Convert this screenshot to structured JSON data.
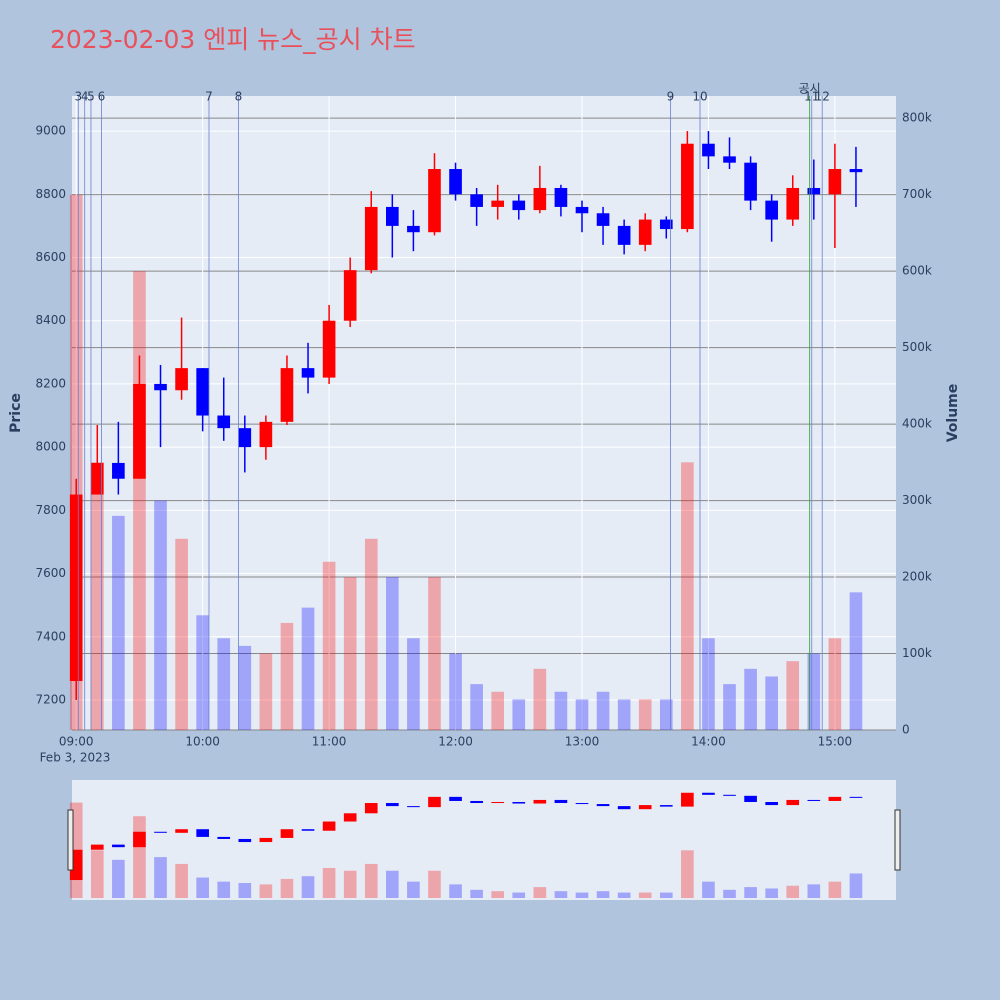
{
  "chart_data": {
    "type": "candlestick",
    "title": "2023-02-03 엔피 뉴스_공시 차트",
    "x_axis_date": "Feb 3, 2023",
    "y_label": "Price",
    "y2_label": "Volume",
    "x": [
      "09:00",
      "09:10",
      "09:20",
      "09:30",
      "09:40",
      "09:50",
      "10:00",
      "10:10",
      "10:20",
      "10:30",
      "10:40",
      "10:50",
      "11:00",
      "11:10",
      "11:20",
      "11:30",
      "11:40",
      "11:50",
      "12:00",
      "12:10",
      "12:20",
      "12:30",
      "12:40",
      "12:50",
      "13:00",
      "13:10",
      "13:20",
      "13:30",
      "13:40",
      "13:50",
      "14:00",
      "14:10",
      "14:20",
      "14:30",
      "14:40",
      "14:50",
      "15:00",
      "15:10"
    ],
    "open": [
      7260,
      7850,
      7950,
      7900,
      8200,
      8180,
      8250,
      8100,
      8060,
      8000,
      8080,
      8250,
      8220,
      8400,
      8560,
      8760,
      8700,
      8680,
      8880,
      8800,
      8760,
      8780,
      8750,
      8820,
      8760,
      8740,
      8700,
      8640,
      8720,
      8690,
      8960,
      8920,
      8900,
      8780,
      8720,
      8820,
      8800,
      8880
    ],
    "high": [
      7900,
      8070,
      8080,
      8290,
      8260,
      8410,
      8250,
      8220,
      8100,
      8100,
      8290,
      8330,
      8450,
      8600,
      8810,
      8800,
      8750,
      8930,
      8900,
      8820,
      8830,
      8800,
      8890,
      8830,
      8780,
      8760,
      8720,
      8740,
      8730,
      9000,
      9000,
      8980,
      8920,
      8800,
      8860,
      8910,
      8960,
      8950
    ],
    "low": [
      7200,
      7850,
      7850,
      7900,
      8000,
      8150,
      8050,
      8020,
      7920,
      7960,
      8070,
      8170,
      8200,
      8380,
      8550,
      8600,
      8620,
      8670,
      8780,
      8700,
      8720,
      8720,
      8740,
      8730,
      8680,
      8640,
      8610,
      8620,
      8660,
      8680,
      8880,
      8880,
      8750,
      8650,
      8700,
      8720,
      8630,
      8760
    ],
    "close": [
      7850,
      7950,
      7900,
      8200,
      8180,
      8250,
      8100,
      8060,
      8000,
      8080,
      8250,
      8220,
      8400,
      8560,
      8760,
      8700,
      8680,
      8880,
      8800,
      8760,
      8780,
      8750,
      8820,
      8760,
      8740,
      8700,
      8640,
      8720,
      8690,
      8960,
      8920,
      8900,
      8780,
      8720,
      8820,
      8800,
      8880,
      8870
    ],
    "volume": [
      700000,
      350000,
      280000,
      600000,
      300000,
      250000,
      150000,
      120000,
      110000,
      100000,
      140000,
      160000,
      220000,
      200000,
      250000,
      200000,
      120000,
      200000,
      100000,
      60000,
      50000,
      40000,
      80000,
      50000,
      40000,
      50000,
      40000,
      40000,
      40000,
      350000,
      120000,
      60000,
      80000,
      70000,
      90000,
      100000,
      120000,
      180000
    ],
    "up_color": "#ff0000",
    "down_color": "#0000ff",
    "xlim": [
      "08:58",
      "15:29"
    ],
    "xticks": [
      "09:00",
      "10:00",
      "11:00",
      "12:00",
      "13:00",
      "14:00",
      "15:00"
    ],
    "ylim": [
      7105,
      9111
    ],
    "yticks": [
      7200,
      7400,
      7600,
      7800,
      8000,
      8200,
      8400,
      8600,
      8800,
      9000
    ],
    "y2lim": [
      0,
      829000
    ],
    "y2ticks": [
      {
        "value": 0,
        "label": "0"
      },
      {
        "value": 100000,
        "label": "100k"
      },
      {
        "value": 200000,
        "label": "200k"
      },
      {
        "value": 300000,
        "label": "300k"
      },
      {
        "value": 400000,
        "label": "400k"
      },
      {
        "value": 500000,
        "label": "500k"
      },
      {
        "value": 600000,
        "label": "600k"
      },
      {
        "value": 700000,
        "label": "700k"
      },
      {
        "value": 800000,
        "label": "800k"
      }
    ],
    "events": [
      {
        "label": "3",
        "x": "09:01",
        "color": "#6a7fd0"
      },
      {
        "label": "4",
        "x": "09:04",
        "color": "#6a7fd0"
      },
      {
        "label": "5",
        "x": "09:07",
        "color": "#6a7fd0"
      },
      {
        "label": "6",
        "x": "09:12",
        "color": "#6a7fd0"
      },
      {
        "label": "7",
        "x": "10:03",
        "color": "#6a7fd0"
      },
      {
        "label": "8",
        "x": "10:17",
        "color": "#6a7fd0"
      },
      {
        "label": "9",
        "x": "13:42",
        "color": "#6a7fd0"
      },
      {
        "label": "10",
        "x": "13:56",
        "color": "#6a7fd0"
      },
      {
        "label": "공시",
        "x": "14:48",
        "color": "#2ca02c"
      },
      {
        "label": "11",
        "x": "14:49",
        "color": "#6a7fd0"
      },
      {
        "label": "12",
        "x": "14:54",
        "color": "#6a7fd0"
      }
    ]
  }
}
